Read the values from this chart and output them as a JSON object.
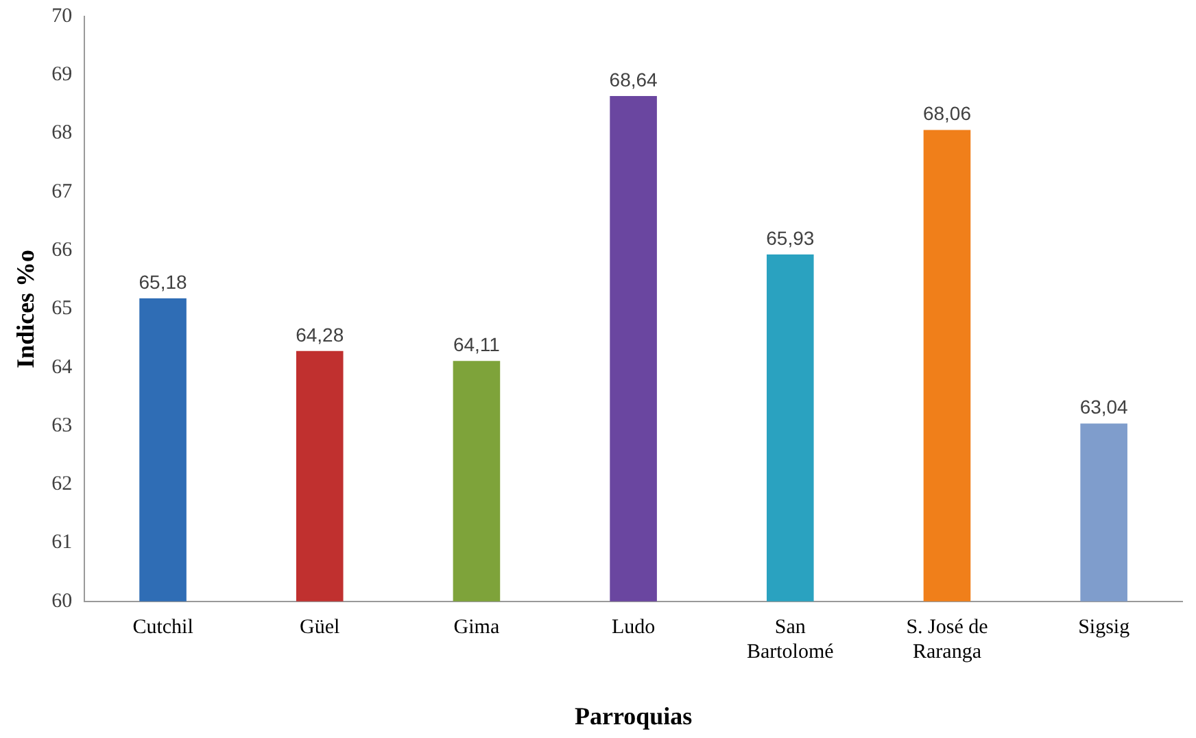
{
  "chart_data": {
    "type": "bar",
    "xlabel": "Parroquias",
    "ylabel": "Indices %o",
    "categories": [
      "Cutchil",
      "Güel",
      "Gima",
      "Ludo",
      "San Bartolomé",
      "S. José de Raranga",
      "Sigsig"
    ],
    "values": [
      65.18,
      64.28,
      64.11,
      68.64,
      65.93,
      68.06,
      63.04
    ],
    "value_labels": [
      "65,18",
      "64,28",
      "64,11",
      "68,64",
      "65,93",
      "68,06",
      "63,04"
    ],
    "colors": [
      "#2f6db5",
      "#c0302f",
      "#7ea33a",
      "#6a46a0",
      "#2aa2c0",
      "#f07f1a",
      "#7f9dcc"
    ],
    "ylim": [
      60,
      70
    ],
    "yticks": [
      60,
      61,
      62,
      63,
      64,
      65,
      66,
      67,
      68,
      69,
      70
    ],
    "grid": false,
    "legend": false
  }
}
